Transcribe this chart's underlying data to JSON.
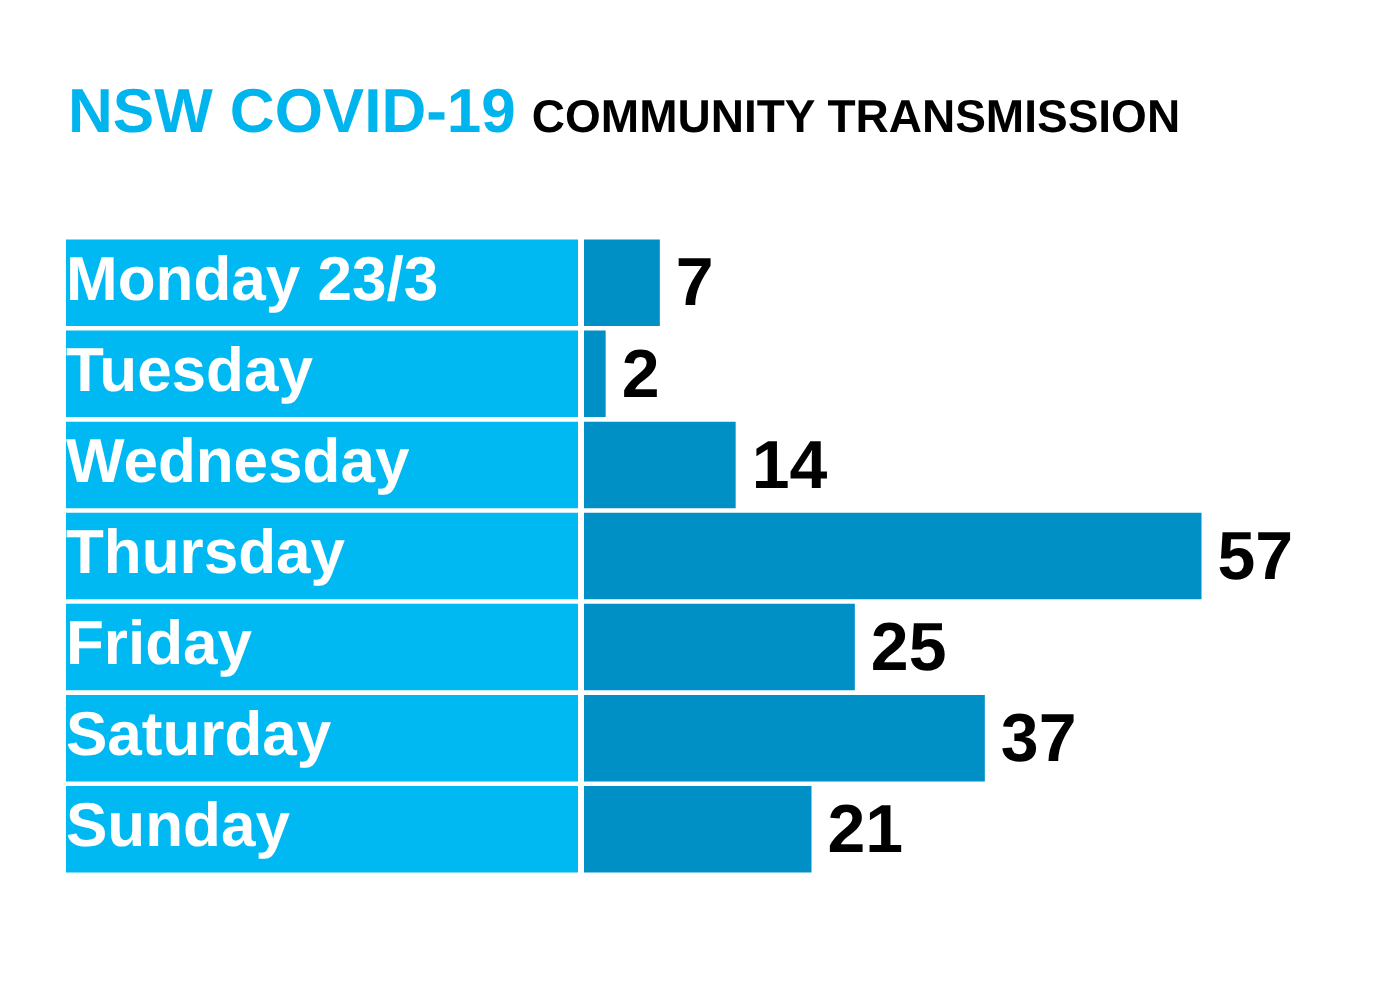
{
  "chart_data": {
    "type": "bar",
    "orientation": "horizontal",
    "title": "NSW COVID-19",
    "subtitle": "COMMUNITY TRANSMISSION",
    "categories": [
      "Monday 23/3",
      "Tuesday",
      "Wednesday",
      "Thursday",
      "Friday",
      "Saturday",
      "Sunday"
    ],
    "values": [
      7,
      2,
      14,
      57,
      25,
      37,
      21
    ],
    "color": "#0090c6",
    "data_labels": true,
    "grid": false,
    "legend": false
  }
}
